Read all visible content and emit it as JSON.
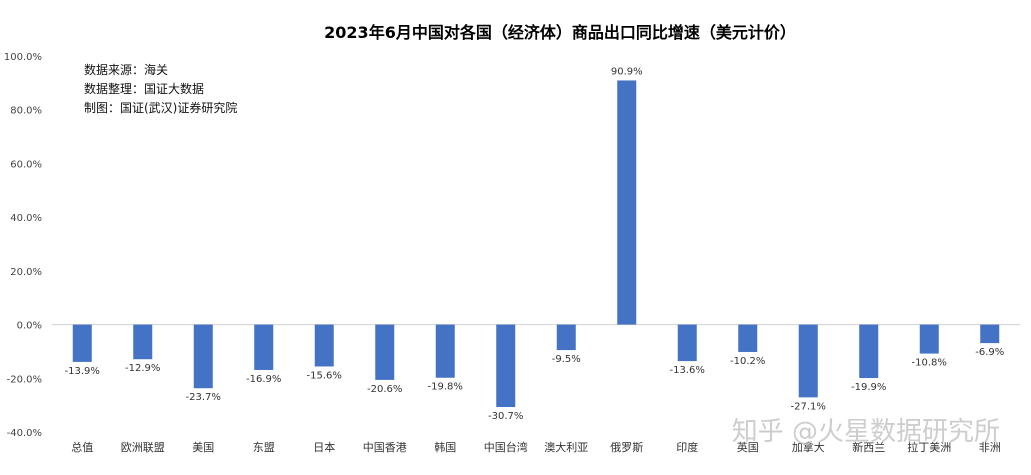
{
  "chart_data": {
    "type": "bar",
    "title": "2023年6月中国对各国（经济体）商品出口同比增速（美元计价）",
    "categories": [
      "总值",
      "欧洲联盟",
      "美国",
      "东盟",
      "日本",
      "中国香港",
      "韩国",
      "中国台湾",
      "澳大利亚",
      "俄罗斯",
      "印度",
      "英国",
      "加拿大",
      "新西兰",
      "拉丁美洲",
      "非洲"
    ],
    "values": [
      -13.9,
      -12.9,
      -23.7,
      -16.9,
      -15.6,
      -20.6,
      -19.8,
      -30.7,
      -9.5,
      90.9,
      -13.6,
      -10.2,
      -27.1,
      -19.9,
      -10.8,
      -6.9
    ],
    "data_labels": [
      "-13.9%",
      "-12.9%",
      "-23.7%",
      "-16.9%",
      "-15.6%",
      "-20.6%",
      "-19.8%",
      "-30.7%",
      "-9.5%",
      "90.9%",
      "-13.6%",
      "-10.2%",
      "-27.1%",
      "-19.9%",
      "-10.8%",
      "-6.9%"
    ],
    "ylim": [
      -40,
      100
    ],
    "yticks": [
      -40,
      -20,
      0,
      20,
      40,
      60,
      80,
      100
    ],
    "ytick_labels": [
      "-40.0%",
      "-20.0%",
      "0.0%",
      "20.0%",
      "40.0%",
      "60.0%",
      "80.0%",
      "100.0%"
    ],
    "xlabel": "",
    "ylabel": "",
    "grid": false,
    "bar_color": "#4472C4"
  },
  "notes": [
    "数据来源：海关",
    "数据整理：国证大数据",
    "制图：国证(武汉)证券研究院"
  ],
  "watermark": "知乎 @火星数据研究所"
}
